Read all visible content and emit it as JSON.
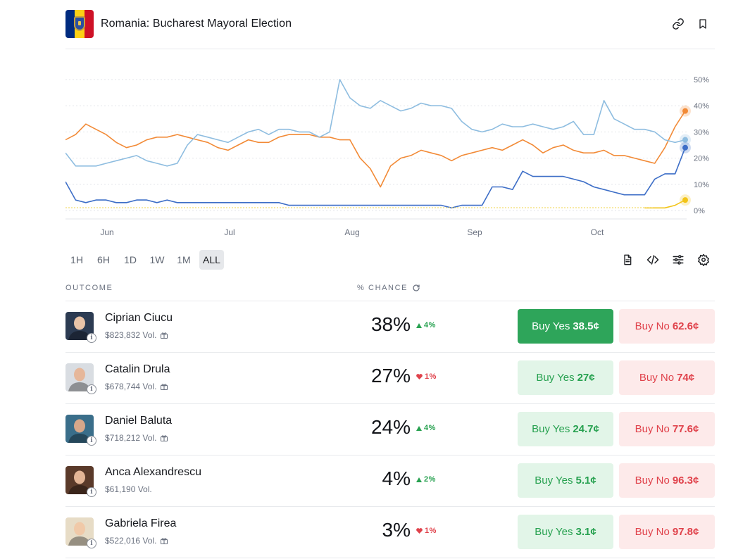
{
  "market": {
    "title": "Romania: Bucharest Mayoral Election",
    "flag_colors": [
      "#002B7F",
      "#FCD116",
      "#CE1126"
    ]
  },
  "header_icons": [
    "link-icon",
    "bookmark-icon"
  ],
  "chart_data": {
    "type": "line",
    "title": "",
    "xlabel": "",
    "ylabel": "",
    "x_ticks": [
      "Jun",
      "Jul",
      "Aug",
      "Sep",
      "Oct"
    ],
    "y_ticks": [
      "50%",
      "40%",
      "30%",
      "20%",
      "10%",
      "0%"
    ],
    "ylim": [
      0,
      50
    ],
    "grid": true,
    "legend": "none",
    "series": [
      {
        "color": "#f28a36",
        "values": [
          27,
          29,
          33,
          31,
          29,
          26,
          24,
          25,
          27,
          28,
          28,
          29,
          28,
          27,
          26,
          24,
          23,
          25,
          27,
          26,
          26,
          28,
          29,
          29,
          29,
          28,
          28,
          27,
          27,
          20,
          16,
          9,
          17,
          20,
          21,
          23,
          22,
          21,
          19,
          21,
          22,
          23,
          24,
          23,
          25,
          27,
          25,
          22,
          24,
          25,
          23,
          22,
          22,
          23,
          21,
          21,
          20,
          19,
          18,
          24,
          32,
          38
        ]
      },
      {
        "color": "#8ebde0",
        "values": [
          22,
          17,
          17,
          17,
          18,
          19,
          20,
          21,
          19,
          18,
          17,
          18,
          25,
          29,
          28,
          27,
          26,
          28,
          30,
          31,
          29,
          31,
          31,
          30,
          30,
          28,
          30,
          50,
          43,
          40,
          39,
          42,
          40,
          38,
          39,
          41,
          40,
          40,
          39,
          34,
          31,
          30,
          31,
          33,
          32,
          32,
          33,
          32,
          31,
          32,
          34,
          29,
          29,
          42,
          35,
          33,
          31,
          31,
          30,
          27,
          26,
          27
        ]
      },
      {
        "color": "#3d6ec7",
        "values": [
          11,
          4,
          3,
          4,
          4,
          3,
          3,
          4,
          4,
          3,
          4,
          3,
          3,
          3,
          3,
          3,
          3,
          3,
          3,
          3,
          3,
          3,
          2,
          2,
          2,
          2,
          2,
          2,
          2,
          2,
          2,
          2,
          2,
          2,
          2,
          2,
          2,
          2,
          1,
          2,
          2,
          2,
          9,
          9,
          8,
          15,
          13,
          13,
          13,
          13,
          12,
          11,
          9,
          8,
          7,
          6,
          6,
          6,
          12,
          14,
          14,
          24
        ]
      },
      {
        "color": "#f2c417",
        "values": [
          null,
          null,
          null,
          null,
          null,
          null,
          null,
          null,
          null,
          null,
          null,
          null,
          null,
          null,
          null,
          null,
          null,
          null,
          null,
          null,
          null,
          null,
          null,
          null,
          null,
          null,
          null,
          null,
          null,
          null,
          null,
          null,
          null,
          null,
          null,
          null,
          null,
          null,
          null,
          null,
          null,
          null,
          null,
          null,
          null,
          null,
          null,
          null,
          null,
          null,
          null,
          null,
          null,
          null,
          null,
          null,
          null,
          1,
          1,
          1,
          2,
          4
        ]
      }
    ]
  },
  "time_ranges": {
    "options": [
      "1H",
      "6H",
      "1D",
      "1W",
      "1M",
      "ALL"
    ],
    "selected": "ALL"
  },
  "toolbar_icons": [
    "document-icon",
    "embed-code-icon",
    "sliders-icon",
    "settings-icon"
  ],
  "columns": {
    "outcome": "OUTCOME",
    "chance": "% CHANCE"
  },
  "outcomes": [
    {
      "name": "Ciprian Ciucu",
      "volume": "$823,832 Vol.",
      "gift": true,
      "chance": "38%",
      "delta": "4%",
      "direction": "up",
      "yes_label": "Buy Yes",
      "yes_price": "38.5¢",
      "no_label": "Buy No",
      "no_price": "62.6¢",
      "highlight_yes": true,
      "avatar_colors": [
        "#2c3b52",
        "#e9c4a8"
      ]
    },
    {
      "name": "Catalin Drula",
      "volume": "$678,744 Vol.",
      "gift": true,
      "chance": "27%",
      "delta": "1%",
      "direction": "down",
      "yes_label": "Buy Yes",
      "yes_price": "27¢",
      "no_label": "Buy No",
      "no_price": "74¢",
      "highlight_yes": false,
      "avatar_colors": [
        "#d9dde2",
        "#e6b79a"
      ]
    },
    {
      "name": "Daniel Baluta",
      "volume": "$718,212 Vol.",
      "gift": true,
      "chance": "24%",
      "delta": "4%",
      "direction": "up",
      "yes_label": "Buy Yes",
      "yes_price": "24.7¢",
      "no_label": "Buy No",
      "no_price": "77.6¢",
      "highlight_yes": false,
      "avatar_colors": [
        "#3a6e8a",
        "#d7a78a"
      ]
    },
    {
      "name": "Anca Alexandrescu",
      "volume": "$61,190 Vol.",
      "gift": false,
      "chance": "4%",
      "delta": "2%",
      "direction": "up",
      "yes_label": "Buy Yes",
      "yes_price": "5.1¢",
      "no_label": "Buy No",
      "no_price": "96.3¢",
      "highlight_yes": false,
      "avatar_colors": [
        "#5a3a2a",
        "#e3b596"
      ]
    },
    {
      "name": "Gabriela Firea",
      "volume": "$522,016 Vol.",
      "gift": true,
      "chance": "3%",
      "delta": "1%",
      "direction": "down",
      "yes_label": "Buy Yes",
      "yes_price": "3.1¢",
      "no_label": "Buy No",
      "no_price": "97.8¢",
      "highlight_yes": false,
      "avatar_colors": [
        "#e7dcc6",
        "#f0c9a8"
      ]
    }
  ]
}
